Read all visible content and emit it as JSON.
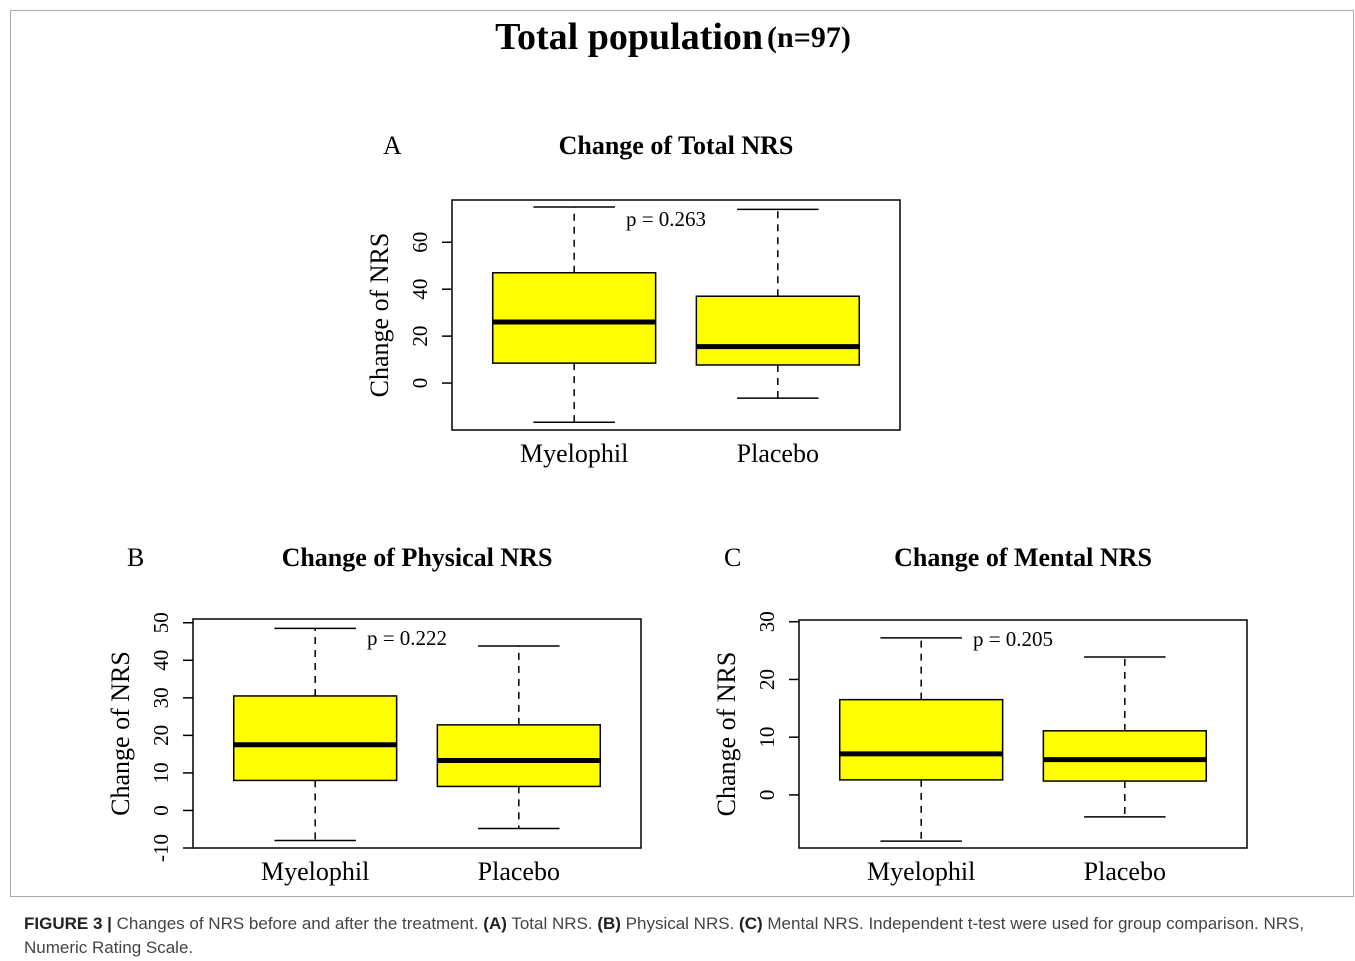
{
  "figure_title": "Total population",
  "figure_subtitle": "(n=97)",
  "chart_data": [
    {
      "type": "box",
      "panel": "A",
      "title": "Change of Total NRS",
      "ylabel": "Change of NRS",
      "annotation": "p = 0.263",
      "categories": [
        "Myelophil",
        "Placebo"
      ],
      "color": "#ffff00",
      "boxes": [
        {
          "whisker_low": -16.7,
          "q1": 8.5,
          "median": 26,
          "q3": 47,
          "whisker_high": 75
        },
        {
          "whisker_low": -6.4,
          "q1": 7.7,
          "median": 15.5,
          "q3": 37,
          "whisker_high": 74
        }
      ],
      "ylim": [
        -20,
        78
      ],
      "yticks": [
        0,
        20,
        40,
        60
      ]
    },
    {
      "type": "box",
      "panel": "B",
      "title": "Change of Physical NRS",
      "ylabel": "Change of NRS",
      "annotation": "p = 0.222",
      "categories": [
        "Myelophil",
        "Placebo"
      ],
      "color": "#ffff00",
      "boxes": [
        {
          "whisker_low": -8,
          "q1": 8,
          "median": 17.5,
          "q3": 30.5,
          "whisker_high": 48.5
        },
        {
          "whisker_low": -4.8,
          "q1": 6.4,
          "median": 13.3,
          "q3": 22.8,
          "whisker_high": 43.8
        }
      ],
      "ylim": [
        -10,
        51
      ],
      "yticks": [
        -10,
        0,
        10,
        20,
        30,
        40,
        50
      ]
    },
    {
      "type": "box",
      "panel": "C",
      "title": "Change of Mental NRS",
      "ylabel": "Change of NRS",
      "annotation": "p = 0.205",
      "categories": [
        "Myelophil",
        "Placebo"
      ],
      "color": "#ffff00",
      "boxes": [
        {
          "whisker_low": -8,
          "q1": 2.6,
          "median": 7.1,
          "q3": 16.5,
          "whisker_high": 27.2
        },
        {
          "whisker_low": -3.8,
          "q1": 2.4,
          "median": 6.1,
          "q3": 11.1,
          "whisker_high": 23.9
        }
      ],
      "ylim": [
        -9.2,
        30.3
      ],
      "yticks": [
        0,
        10,
        20,
        30
      ]
    }
  ],
  "caption": [
    "FIGURE 3 |",
    "Changes of NRS before and after the treatment.",
    "(A)",
    "Total NRS.",
    "(B)",
    "Physical NRS.",
    "(C)",
    "Mental NRS. Independent t-test were used for group comparison. NRS, Numeric Rating Scale."
  ]
}
